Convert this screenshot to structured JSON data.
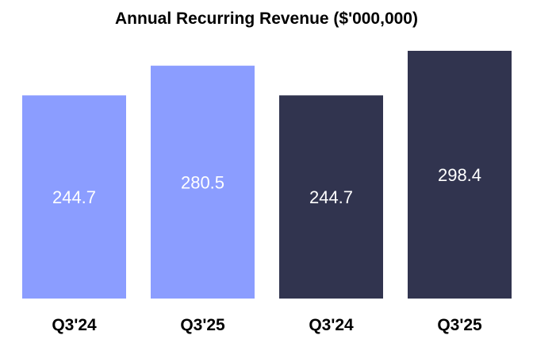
{
  "chart_data": {
    "type": "bar",
    "title": "Annual Recurring Revenue ($'000,000)",
    "categories": [
      "Q3'24",
      "Q3'25",
      "Q3'24",
      "Q3'25"
    ],
    "values": [
      244.7,
      280.5,
      244.7,
      298.4
    ],
    "data_labels": [
      "244.7",
      "280.5",
      "244.7",
      "298.4"
    ],
    "bar_colors": [
      "#8b9dff",
      "#8b9dff",
      "#31344f",
      "#31344f"
    ],
    "xlabel": "",
    "ylabel": "",
    "ylim": [
      0,
      298.4
    ],
    "grid": false,
    "legend": "none"
  }
}
